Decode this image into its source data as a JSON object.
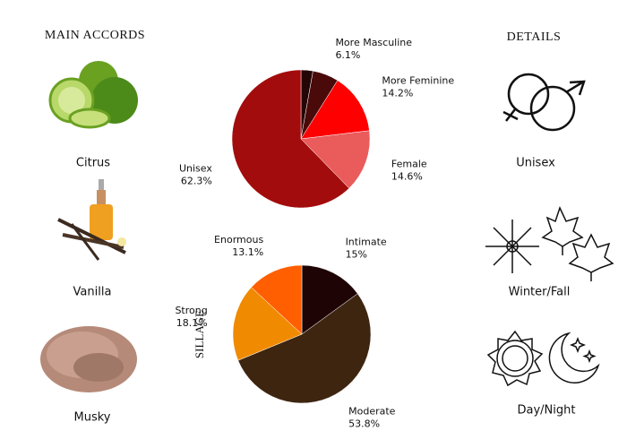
{
  "accords_title": "MAIN ACCORDS",
  "accords": [
    "Citrus",
    "Vanilla",
    "Musky"
  ],
  "details_title": "DETAILS",
  "details": [
    "Unisex",
    "Winter/Fall",
    "Day/Night"
  ],
  "chart_data": [
    {
      "type": "pie",
      "categories": [
        null,
        "More Masculine",
        "More Feminine",
        "Female",
        "Unisex"
      ],
      "values": [
        2.8,
        6.1,
        14.2,
        14.6,
        62.3
      ],
      "value_labels": [
        null,
        "6.1%",
        "14.2%",
        "14.6%",
        "62.3%"
      ],
      "colors": [
        "#250606",
        "#4a0a0a",
        "#ff0000",
        "#ea5b5b",
        "#a30c0c"
      ]
    },
    {
      "type": "pie",
      "ylabel": "SILLAGE",
      "categories": [
        "Intimate",
        "Moderate",
        "Strong",
        "Enormous"
      ],
      "values": [
        15,
        53.8,
        18.1,
        13.1
      ],
      "value_labels": [
        "15%",
        "53.8%",
        "18.1%",
        "13.1%"
      ],
      "colors": [
        "#1e0404",
        "#3e2510",
        "#f08a00",
        "#ff5f00"
      ]
    }
  ]
}
